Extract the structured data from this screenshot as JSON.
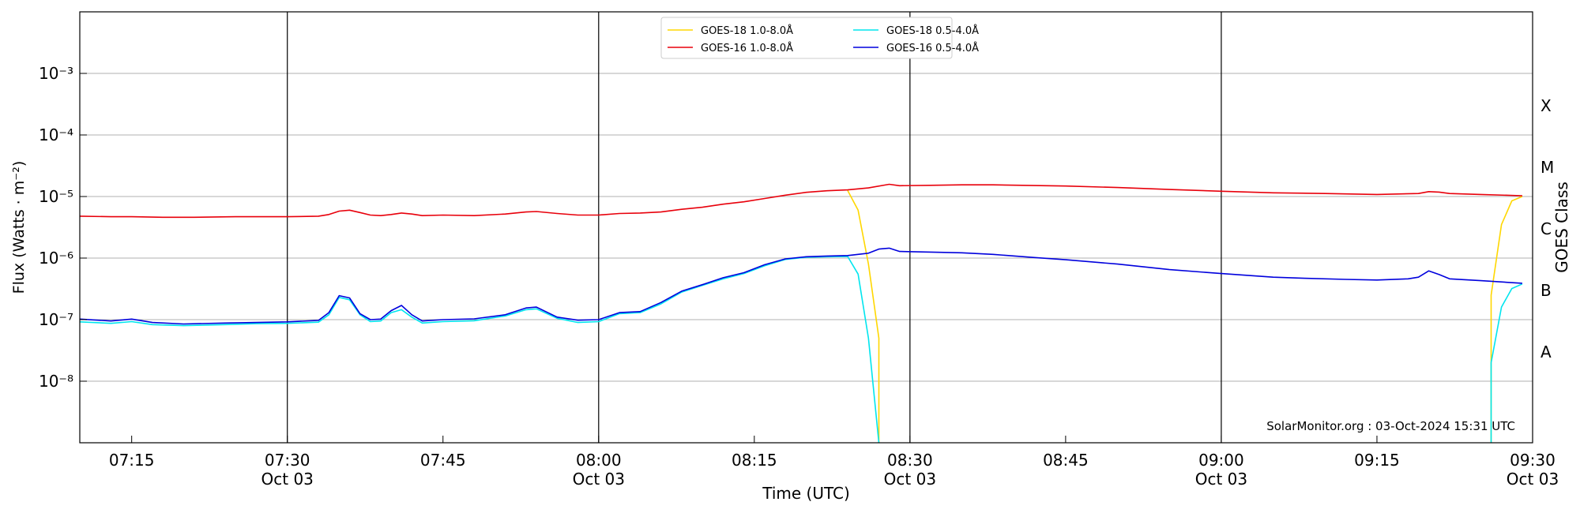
{
  "chart_data": {
    "type": "line",
    "ylabel": "Flux (Watts · m⁻²)",
    "xlabel": "Time (UTC)",
    "right_ylabel": "GOES Class",
    "y_scale": "log",
    "ylim": [
      1e-09,
      0.01
    ],
    "xlim": [
      "07:10",
      "09:30"
    ],
    "y_ticks": [
      {
        "value": 1e-08,
        "label": "10⁻⁸"
      },
      {
        "value": 1e-07,
        "label": "10⁻⁷"
      },
      {
        "value": 1e-06,
        "label": "10⁻⁶"
      },
      {
        "value": 1e-05,
        "label": "10⁻⁵"
      },
      {
        "value": 0.0001,
        "label": "10⁻⁴"
      },
      {
        "value": 0.001,
        "label": "10⁻³"
      }
    ],
    "x_ticks": [
      {
        "time": "07:15",
        "label": "07:15",
        "sublabel": ""
      },
      {
        "time": "07:30",
        "label": "07:30",
        "sublabel": "Oct 03"
      },
      {
        "time": "07:45",
        "label": "07:45",
        "sublabel": ""
      },
      {
        "time": "08:00",
        "label": "08:00",
        "sublabel": "Oct 03"
      },
      {
        "time": "08:15",
        "label": "08:15",
        "sublabel": ""
      },
      {
        "time": "08:30",
        "label": "08:30",
        "sublabel": "Oct 03"
      },
      {
        "time": "08:45",
        "label": "08:45",
        "sublabel": ""
      },
      {
        "time": "09:00",
        "label": "09:00",
        "sublabel": "Oct 03"
      },
      {
        "time": "09:15",
        "label": "09:15",
        "sublabel": ""
      },
      {
        "time": "09:30",
        "label": "09:30",
        "sublabel": "Oct 03"
      }
    ],
    "vertical_lines": [
      "07:30",
      "08:00",
      "08:30",
      "09:00"
    ],
    "goes_classes": [
      {
        "label": "A",
        "value": 3e-08
      },
      {
        "label": "B",
        "value": 3e-07
      },
      {
        "label": "C",
        "value": 3e-06
      },
      {
        "label": "M",
        "value": 3e-05
      },
      {
        "label": "X",
        "value": 0.0003
      }
    ],
    "grid": "horizontal",
    "legend_position": "top-center",
    "annotation": "SolarMonitor.org : 03-Oct-2024 15:31 UTC",
    "series": [
      {
        "name": "GOES-18 1.0-8.0Å",
        "color": "#ffd700",
        "points": [
          [
            "08:24",
            1.25e-05
          ],
          [
            "08:25",
            6e-06
          ],
          [
            "08:26",
            8e-07
          ],
          [
            "08:27",
            5e-08
          ],
          [
            "08:27",
            1e-09
          ]
        ],
        "points2": [
          [
            "09:26",
            1e-09
          ],
          [
            "09:26",
            2.5e-07
          ],
          [
            "09:27",
            3.5e-06
          ],
          [
            "09:28",
            8.5e-06
          ],
          [
            "09:29",
            1e-05
          ]
        ]
      },
      {
        "name": "GOES-16 1.0-8.0Å",
        "color": "#e8000b",
        "points": [
          [
            "07:10",
            4.8e-06
          ],
          [
            "07:13",
            4.7e-06
          ],
          [
            "07:15",
            4.7e-06
          ],
          [
            "07:18",
            4.6e-06
          ],
          [
            "07:21",
            4.6e-06
          ],
          [
            "07:25",
            4.7e-06
          ],
          [
            "07:30",
            4.7e-06
          ],
          [
            "07:33",
            4.8e-06
          ],
          [
            "07:34",
            5.1e-06
          ],
          [
            "07:35",
            5.8e-06
          ],
          [
            "07:36",
            6e-06
          ],
          [
            "07:37",
            5.5e-06
          ],
          [
            "07:38",
            5e-06
          ],
          [
            "07:39",
            4.9e-06
          ],
          [
            "07:40",
            5.1e-06
          ],
          [
            "07:41",
            5.4e-06
          ],
          [
            "07:42",
            5.2e-06
          ],
          [
            "07:43",
            4.9e-06
          ],
          [
            "07:45",
            5e-06
          ],
          [
            "07:48",
            4.9e-06
          ],
          [
            "07:51",
            5.2e-06
          ],
          [
            "07:53",
            5.6e-06
          ],
          [
            "07:54",
            5.7e-06
          ],
          [
            "07:56",
            5.3e-06
          ],
          [
            "07:58",
            5e-06
          ],
          [
            "08:00",
            5e-06
          ],
          [
            "08:02",
            5.3e-06
          ],
          [
            "08:04",
            5.4e-06
          ],
          [
            "08:06",
            5.6e-06
          ],
          [
            "08:08",
            6.2e-06
          ],
          [
            "08:10",
            6.7e-06
          ],
          [
            "08:12",
            7.5e-06
          ],
          [
            "08:14",
            8.2e-06
          ],
          [
            "08:16",
            9.3e-06
          ],
          [
            "08:18",
            1.05e-05
          ],
          [
            "08:20",
            1.17e-05
          ],
          [
            "08:22",
            1.24e-05
          ],
          [
            "08:24",
            1.28e-05
          ],
          [
            "08:26",
            1.38e-05
          ],
          [
            "08:28",
            1.58e-05
          ],
          [
            "08:29",
            1.5e-05
          ],
          [
            "08:32",
            1.52e-05
          ],
          [
            "08:35",
            1.55e-05
          ],
          [
            "08:38",
            1.55e-05
          ],
          [
            "08:45",
            1.48e-05
          ],
          [
            "08:50",
            1.4e-05
          ],
          [
            "08:55",
            1.3e-05
          ],
          [
            "09:00",
            1.22e-05
          ],
          [
            "09:05",
            1.15e-05
          ],
          [
            "09:10",
            1.12e-05
          ],
          [
            "09:15",
            1.08e-05
          ],
          [
            "09:19",
            1.12e-05
          ],
          [
            "09:20",
            1.2e-05
          ],
          [
            "09:21",
            1.18e-05
          ],
          [
            "09:22",
            1.12e-05
          ],
          [
            "09:25",
            1.08e-05
          ],
          [
            "09:29",
            1.03e-05
          ]
        ]
      },
      {
        "name": "GOES-18 0.5-4.0Å",
        "color": "#00e5ee",
        "points": [
          [
            "07:10",
            9.2e-08
          ],
          [
            "07:13",
            8.7e-08
          ],
          [
            "07:15",
            9.3e-08
          ],
          [
            "07:17",
            8.3e-08
          ],
          [
            "07:20",
            8e-08
          ],
          [
            "07:24",
            8.3e-08
          ],
          [
            "07:27",
            8.6e-08
          ],
          [
            "07:30",
            8.7e-08
          ],
          [
            "07:33",
            9.1e-08
          ],
          [
            "07:34",
            1.2e-07
          ],
          [
            "07:35",
            2.3e-07
          ],
          [
            "07:36",
            2.1e-07
          ],
          [
            "07:37",
            1.2e-07
          ],
          [
            "07:38",
            9.3e-08
          ],
          [
            "07:39",
            9.5e-08
          ],
          [
            "07:40",
            1.3e-07
          ],
          [
            "07:41",
            1.45e-07
          ],
          [
            "07:42",
            1.1e-07
          ],
          [
            "07:43",
            8.8e-08
          ],
          [
            "07:45",
            9.3e-08
          ],
          [
            "07:48",
            9.6e-08
          ],
          [
            "07:51",
            1.15e-07
          ],
          [
            "07:53",
            1.45e-07
          ],
          [
            "07:54",
            1.5e-07
          ],
          [
            "07:56",
            1.05e-07
          ],
          [
            "07:58",
            9e-08
          ],
          [
            "08:00",
            9.3e-08
          ],
          [
            "08:02",
            1.25e-07
          ],
          [
            "08:04",
            1.3e-07
          ],
          [
            "08:06",
            1.8e-07
          ],
          [
            "08:08",
            2.8e-07
          ],
          [
            "08:10",
            3.6e-07
          ],
          [
            "08:12",
            4.6e-07
          ],
          [
            "08:14",
            5.6e-07
          ],
          [
            "08:16",
            7.5e-07
          ],
          [
            "08:18",
            9.5e-07
          ],
          [
            "08:20",
            1.03e-06
          ],
          [
            "08:22",
            1.05e-06
          ],
          [
            "08:24",
            1.06e-06
          ],
          [
            "08:25",
            5.5e-07
          ],
          [
            "08:26",
            5e-08
          ],
          [
            "08:27",
            1e-09
          ]
        ],
        "points2": [
          [
            "09:26",
            1e-09
          ],
          [
            "09:26",
            2e-08
          ],
          [
            "09:27",
            1.6e-07
          ],
          [
            "09:28",
            3.2e-07
          ],
          [
            "09:29",
            3.8e-07
          ]
        ]
      },
      {
        "name": "GOES-16 0.5-4.0Å",
        "color": "#0000dd",
        "points": [
          [
            "07:10",
            1.02e-07
          ],
          [
            "07:13",
            9.5e-08
          ],
          [
            "07:15",
            1.02e-07
          ],
          [
            "07:17",
            9e-08
          ],
          [
            "07:20",
            8.5e-08
          ],
          [
            "07:24",
            8.8e-08
          ],
          [
            "07:27",
            9e-08
          ],
          [
            "07:30",
            9.2e-08
          ],
          [
            "07:33",
            9.7e-08
          ],
          [
            "07:34",
            1.3e-07
          ],
          [
            "07:35",
            2.45e-07
          ],
          [
            "07:36",
            2.25e-07
          ],
          [
            "07:37",
            1.25e-07
          ],
          [
            "07:38",
            1e-07
          ],
          [
            "07:39",
            1.02e-07
          ],
          [
            "07:40",
            1.4e-07
          ],
          [
            "07:41",
            1.7e-07
          ],
          [
            "07:42",
            1.2e-07
          ],
          [
            "07:43",
            9.5e-08
          ],
          [
            "07:45",
            1e-07
          ],
          [
            "07:48",
            1.03e-07
          ],
          [
            "07:51",
            1.2e-07
          ],
          [
            "07:53",
            1.55e-07
          ],
          [
            "07:54",
            1.6e-07
          ],
          [
            "07:56",
            1.1e-07
          ],
          [
            "07:58",
            9.8e-08
          ],
          [
            "08:00",
            1e-07
          ],
          [
            "08:02",
            1.3e-07
          ],
          [
            "08:04",
            1.35e-07
          ],
          [
            "08:06",
            1.9e-07
          ],
          [
            "08:08",
            2.9e-07
          ],
          [
            "08:10",
            3.7e-07
          ],
          [
            "08:12",
            4.8e-07
          ],
          [
            "08:14",
            5.8e-07
          ],
          [
            "08:16",
            7.8e-07
          ],
          [
            "08:18",
            9.7e-07
          ],
          [
            "08:20",
            1.05e-06
          ],
          [
            "08:22",
            1.08e-06
          ],
          [
            "08:24",
            1.1e-06
          ],
          [
            "08:25",
            1.15e-06
          ],
          [
            "08:26",
            1.2e-06
          ],
          [
            "08:27",
            1.4e-06
          ],
          [
            "08:28",
            1.45e-06
          ],
          [
            "08:29",
            1.28e-06
          ],
          [
            "08:32",
            1.25e-06
          ],
          [
            "08:35",
            1.22e-06
          ],
          [
            "08:38",
            1.15e-06
          ],
          [
            "08:42",
            1.02e-06
          ],
          [
            "08:45",
            9.4e-07
          ],
          [
            "08:50",
            8e-07
          ],
          [
            "08:55",
            6.5e-07
          ],
          [
            "09:00",
            5.6e-07
          ],
          [
            "09:05",
            4.9e-07
          ],
          [
            "09:08",
            4.7e-07
          ],
          [
            "09:12",
            4.5e-07
          ],
          [
            "09:15",
            4.4e-07
          ],
          [
            "09:18",
            4.6e-07
          ],
          [
            "09:19",
            4.9e-07
          ],
          [
            "09:20",
            6.2e-07
          ],
          [
            "09:21",
            5.4e-07
          ],
          [
            "09:22",
            4.6e-07
          ],
          [
            "09:25",
            4.3e-07
          ],
          [
            "09:29",
            3.9e-07
          ]
        ]
      }
    ]
  }
}
